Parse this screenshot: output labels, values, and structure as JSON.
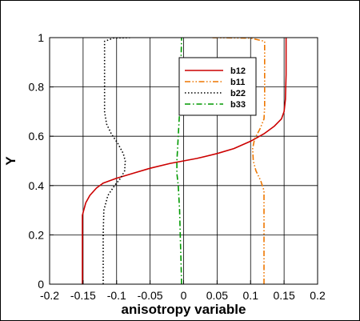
{
  "chart_data": {
    "type": "line",
    "xlabel": "anisotropy variable",
    "ylabel": "Y",
    "xlim": [
      -0.2,
      0.2
    ],
    "ylim": [
      0,
      1
    ],
    "xticks": [
      -0.2,
      -0.15,
      -0.1,
      -0.05,
      0,
      0.05,
      0.1,
      0.15,
      0.2
    ],
    "xtick_labels": [
      "-0.2",
      "-0.15",
      "-0.1",
      "-0.05",
      "0",
      "0.05",
      "0.1",
      "0.15",
      "0.2"
    ],
    "yticks": [
      0,
      0.2,
      0.4,
      0.6,
      0.8,
      1
    ],
    "ytick_labels": [
      "0",
      "0.2",
      "0.4",
      "0.6",
      "0.8",
      "1"
    ],
    "grid": true,
    "legend_position": "top-right",
    "series": [
      {
        "name": "b12",
        "color": "#cc0000",
        "dash": "solid",
        "points": [
          [
            -0.151,
            0
          ],
          [
            -0.151,
            0.1
          ],
          [
            -0.151,
            0.2
          ],
          [
            -0.151,
            0.28
          ],
          [
            -0.149,
            0.3
          ],
          [
            -0.146,
            0.33
          ],
          [
            -0.14,
            0.36
          ],
          [
            -0.13,
            0.39
          ],
          [
            -0.12,
            0.41
          ],
          [
            -0.1,
            0.43
          ],
          [
            -0.075,
            0.45
          ],
          [
            -0.05,
            0.47
          ],
          [
            -0.02,
            0.49
          ],
          [
            0,
            0.5
          ],
          [
            0.02,
            0.51
          ],
          [
            0.05,
            0.53
          ],
          [
            0.075,
            0.55
          ],
          [
            0.1,
            0.58
          ],
          [
            0.12,
            0.61
          ],
          [
            0.135,
            0.64
          ],
          [
            0.146,
            0.67
          ],
          [
            0.15,
            0.7
          ],
          [
            0.152,
            0.75
          ],
          [
            0.153,
            0.85
          ],
          [
            0.153,
            1
          ]
        ]
      },
      {
        "name": "b11",
        "color": "#ee7700",
        "dash": "dashdotdot",
        "points": [
          [
            0.12,
            0
          ],
          [
            0.12,
            0.1
          ],
          [
            0.12,
            0.2
          ],
          [
            0.12,
            0.3
          ],
          [
            0.12,
            0.38
          ],
          [
            0.115,
            0.42
          ],
          [
            0.108,
            0.46
          ],
          [
            0.104,
            0.5
          ],
          [
            0.103,
            0.55
          ],
          [
            0.106,
            0.59
          ],
          [
            0.114,
            0.63
          ],
          [
            0.12,
            0.67
          ],
          [
            0.121,
            0.72
          ],
          [
            0.121,
            0.8
          ],
          [
            0.121,
            0.9
          ],
          [
            0.121,
            0.985
          ],
          [
            0.1,
            0.998
          ],
          [
            0.04,
            1.0
          ]
        ]
      },
      {
        "name": "b22",
        "color": "#000000",
        "dash": "dotted",
        "points": [
          [
            -0.12,
            0
          ],
          [
            -0.12,
            0.1
          ],
          [
            -0.12,
            0.2
          ],
          [
            -0.119,
            0.3
          ],
          [
            -0.113,
            0.36
          ],
          [
            -0.103,
            0.4
          ],
          [
            -0.094,
            0.43
          ],
          [
            -0.088,
            0.46
          ],
          [
            -0.087,
            0.5
          ],
          [
            -0.09,
            0.53
          ],
          [
            -0.098,
            0.57
          ],
          [
            -0.108,
            0.61
          ],
          [
            -0.115,
            0.65
          ],
          [
            -0.118,
            0.7
          ],
          [
            -0.118,
            0.8
          ],
          [
            -0.118,
            0.9
          ],
          [
            -0.118,
            0.985
          ],
          [
            -0.105,
            0.998
          ],
          [
            -0.08,
            1.0
          ]
        ]
      },
      {
        "name": "b33",
        "color": "#009900",
        "dash": "dashdot",
        "points": [
          [
            -0.003,
            0
          ],
          [
            -0.004,
            0.1
          ],
          [
            -0.005,
            0.2
          ],
          [
            -0.006,
            0.3
          ],
          [
            -0.008,
            0.4
          ],
          [
            -0.01,
            0.45
          ],
          [
            -0.01,
            0.5
          ],
          [
            -0.009,
            0.55
          ],
          [
            -0.008,
            0.6
          ],
          [
            -0.006,
            0.7
          ],
          [
            -0.005,
            0.8
          ],
          [
            -0.004,
            0.9
          ],
          [
            -0.003,
            1.0
          ]
        ]
      }
    ]
  }
}
